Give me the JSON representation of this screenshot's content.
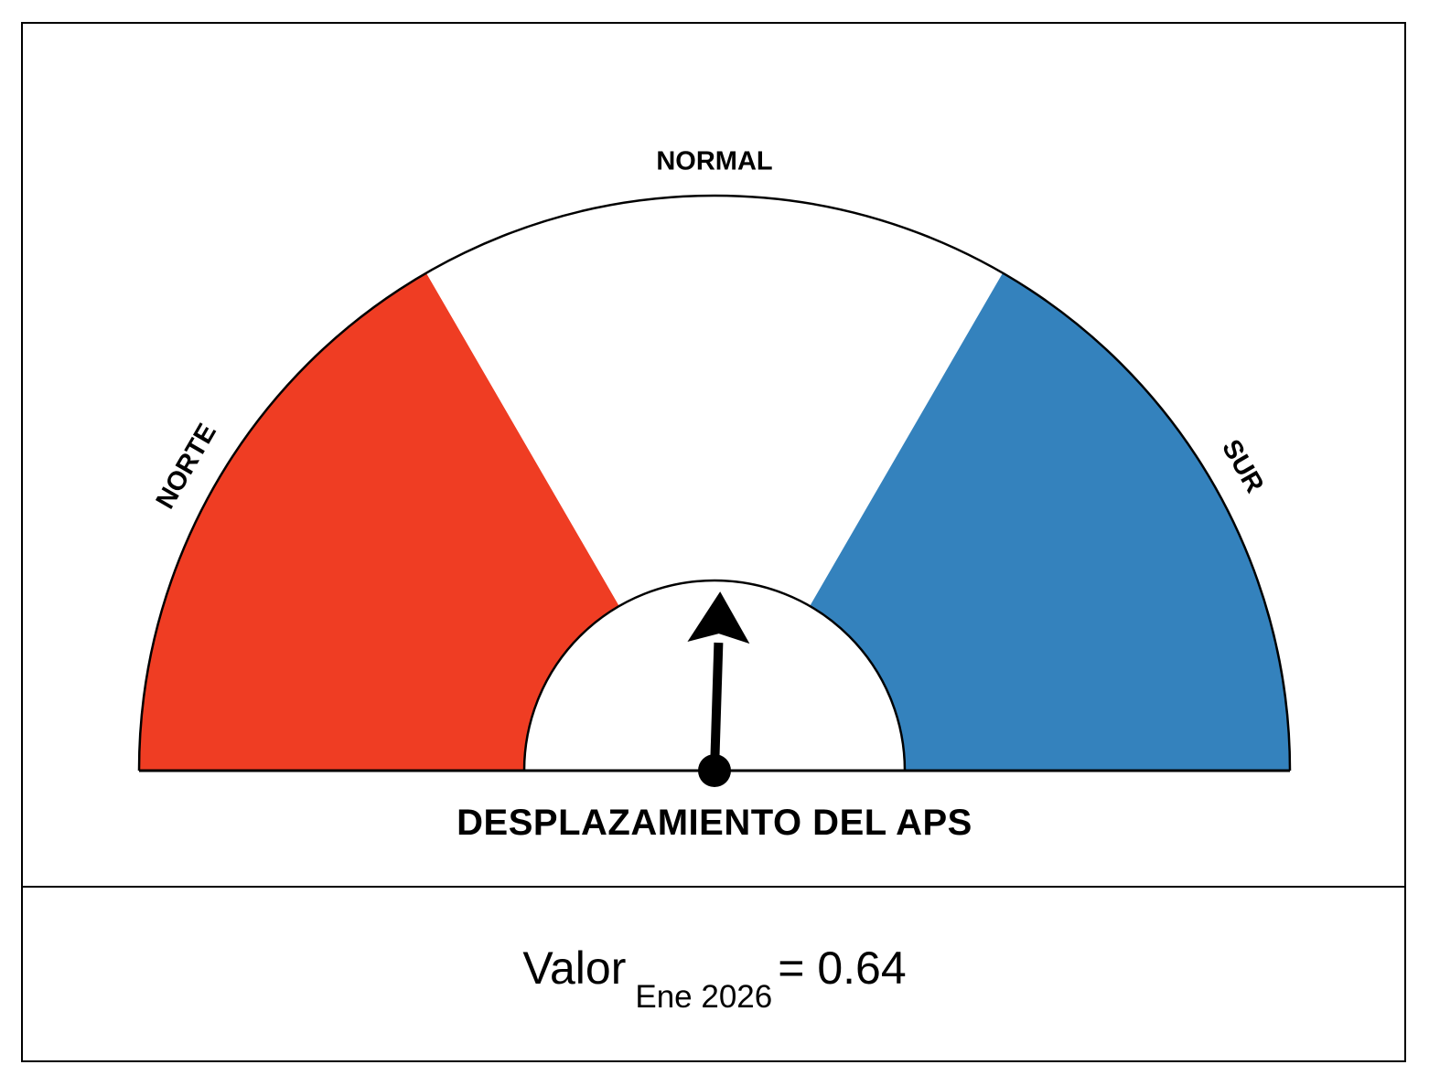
{
  "chart_data": {
    "type": "gauge",
    "title": "DESPLAZAMIENTO DEL APS",
    "zones": [
      {
        "label": "NORTE",
        "from": 0,
        "to": 0.333,
        "color": "#EF3D23"
      },
      {
        "label": "NORMAL",
        "from": 0.333,
        "to": 0.667,
        "color": "#FFFFFF"
      },
      {
        "label": "SUR",
        "from": 0.667,
        "to": 1,
        "color": "#3482BD"
      }
    ],
    "needle_position": 0.51,
    "value": {
      "prefix": "Valor",
      "period": "Ene 2026",
      "suffix": "= 0.64"
    }
  }
}
